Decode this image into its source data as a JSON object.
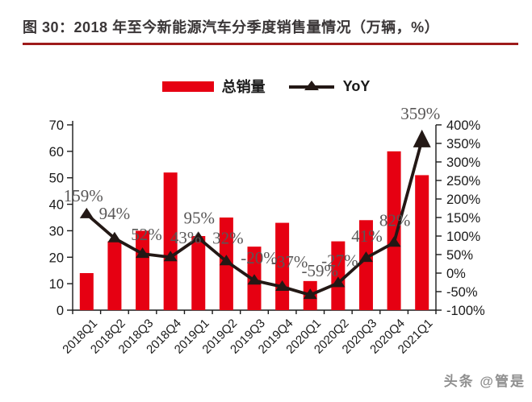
{
  "page": {
    "title": "图 30：2018 年至今新能源汽车分季度销售量情况（万辆，%）",
    "watermark": "头条 @管是"
  },
  "legend": {
    "bar_label": "总销量",
    "line_label": "YoY"
  },
  "colors": {
    "bar": "#e60012",
    "line": "#231815",
    "title_rule": "#9e1b1b",
    "point_label": "#595757",
    "axis": "#1a1a1a"
  },
  "chart_data": {
    "type": "bar",
    "subtype": "bar+line combo, dual axis",
    "categories": [
      "2018Q1",
      "2018Q2",
      "2018Q3",
      "2018Q4",
      "2019Q1",
      "2019Q2",
      "2019Q3",
      "2019Q4",
      "2020Q1",
      "2020Q2",
      "2020Q3",
      "2020Q4",
      "2021Q1"
    ],
    "series": [
      {
        "name": "总销量",
        "type": "bar",
        "axis": "left",
        "unit": "万辆",
        "values": [
          14,
          26,
          30,
          52,
          28,
          35,
          24,
          33,
          11,
          26,
          34,
          60,
          51
        ]
      },
      {
        "name": "YoY",
        "type": "line",
        "axis": "right",
        "unit": "%",
        "values": [
          159,
          94,
          52,
          43,
          95,
          32,
          -20,
          -37,
          -59,
          -27,
          41,
          82,
          359
        ],
        "point_labels": [
          "159%",
          "94%",
          "52%",
          "43%",
          "95%",
          "32%",
          "-20%",
          "-37%",
          "-59%",
          "-27%",
          "41%",
          "82%",
          "359%"
        ]
      }
    ],
    "left_axis": {
      "min": 0,
      "max": 70,
      "step": 10,
      "tick_labels": [
        "0",
        "10",
        "20",
        "30",
        "40",
        "50",
        "60",
        "70"
      ]
    },
    "right_axis": {
      "min": -100,
      "max": 400,
      "step": 50,
      "tick_labels": [
        "400%",
        "350%",
        "300%",
        "250%",
        "200%",
        "150%",
        "100%",
        "50%",
        "0%",
        "-50%",
        "-100%"
      ]
    },
    "grid": false,
    "legend_position": "top",
    "x_label_rotation": -45
  }
}
